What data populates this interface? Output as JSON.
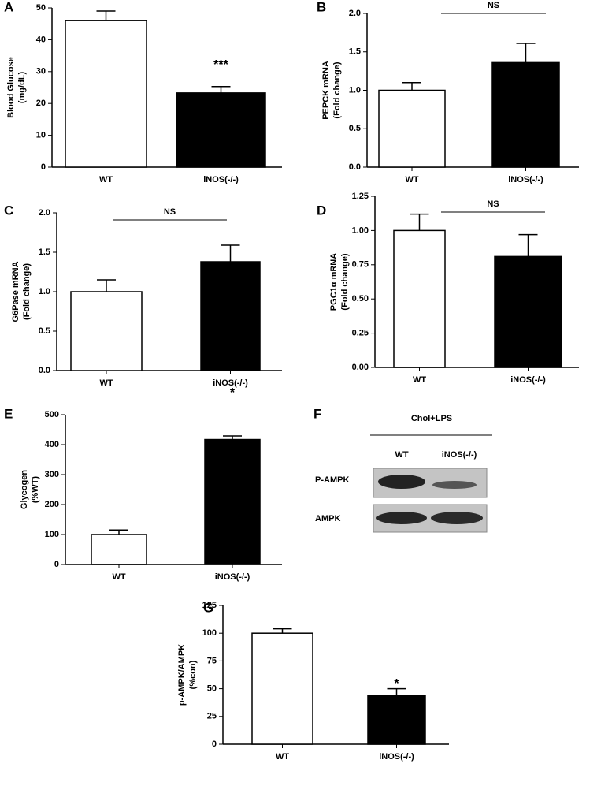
{
  "chart_data": [
    {
      "type": "bar",
      "panel_label": "A",
      "ylabel": [
        "Blood Glucose",
        "(mg/dL)"
      ],
      "categories": [
        "WT",
        "iNOS(-/-)"
      ],
      "values": [
        46,
        23.3
      ],
      "errors": [
        3,
        2
      ],
      "colors": [
        "#ffffff",
        "#000000"
      ],
      "ylim": [
        0,
        50
      ],
      "yticks": [
        0,
        10,
        20,
        30,
        40,
        50
      ],
      "annotation": "***"
    },
    {
      "type": "bar",
      "panel_label": "B",
      "ylabel": [
        "PEPCK mRNA",
        "(Fold change)"
      ],
      "categories": [
        "WT",
        "iNOS(-/-)"
      ],
      "values": [
        1.0,
        1.36
      ],
      "errors": [
        0.1,
        0.25
      ],
      "colors": [
        "#ffffff",
        "#000000"
      ],
      "ylim": [
        0,
        2
      ],
      "yticks": [
        {
          "value": 0,
          "label": "0.0"
        },
        0.5,
        {
          "value": 1,
          "label": "1.0"
        },
        1.5,
        {
          "value": 2,
          "label": "2.0"
        }
      ],
      "annotation": "NS"
    },
    {
      "type": "bar",
      "panel_label": "C",
      "ylabel": [
        "G6Pase mRNA",
        "(Fold change)"
      ],
      "categories": [
        "WT",
        "iNOS(-/-)"
      ],
      "values": [
        1.0,
        1.38
      ],
      "errors": [
        0.15,
        0.21
      ],
      "colors": [
        "#ffffff",
        "#000000"
      ],
      "ylim": [
        0,
        2
      ],
      "yticks": [
        {
          "value": 0,
          "label": "0.0"
        },
        0.5,
        {
          "value": 1,
          "label": "1.0"
        },
        1.5,
        {
          "value": 2,
          "label": "2.0"
        }
      ],
      "annotation": "NS"
    },
    {
      "type": "bar",
      "panel_label": "D",
      "ylabel": [
        "PGC1α mRNA",
        "(Fold change)"
      ],
      "categories": [
        "WT",
        "iNOS(-/-)"
      ],
      "values": [
        1.0,
        0.81
      ],
      "errors": [
        0.12,
        0.16
      ],
      "colors": [
        "#ffffff",
        "#000000"
      ],
      "ylim": [
        0,
        1.25
      ],
      "yticks": [
        {
          "value": 0,
          "label": "0.00"
        },
        0.25,
        {
          "value": 0.5,
          "label": "0.50"
        },
        0.75,
        {
          "value": 1,
          "label": "1.00"
        },
        1.25
      ],
      "annotation": "NS"
    },
    {
      "type": "bar",
      "panel_label": "E",
      "ylabel": [
        "Glycogen",
        "(%WT)"
      ],
      "categories": [
        "WT",
        "iNOS(-/-)"
      ],
      "values": [
        100,
        417
      ],
      "errors": [
        15,
        12
      ],
      "colors": [
        "#ffffff",
        "#000000"
      ],
      "ylim": [
        0,
        500
      ],
      "yticks": [
        0,
        100,
        200,
        300,
        400,
        500
      ],
      "annotation": "*"
    },
    {
      "type": "bar",
      "panel_label": "G",
      "ylabel": [
        "p-AMPK/AMPK",
        "(%con)"
      ],
      "categories": [
        "WT",
        "iNOS(-/-)"
      ],
      "values": [
        100,
        44
      ],
      "errors": [
        4,
        6
      ],
      "colors": [
        "#ffffff",
        "#000000"
      ],
      "ylim": [
        0,
        125
      ],
      "yticks": [
        0,
        25,
        50,
        75,
        100,
        125
      ],
      "annotation": "*"
    }
  ],
  "blot": {
    "panel_label": "F",
    "condition": "Chol+LPS",
    "lanes": [
      "WT",
      "iNOS(-/-)"
    ],
    "rows": [
      "P-AMPK",
      "AMPK"
    ]
  }
}
